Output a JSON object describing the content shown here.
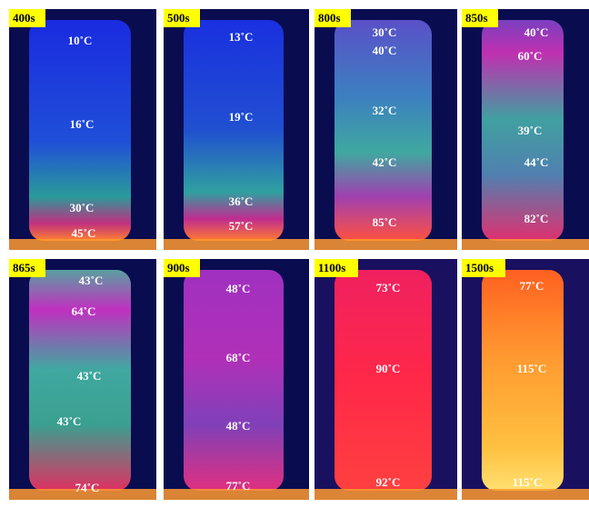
{
  "panels": [
    {
      "time": "400s",
      "labels": [
        "10˚C",
        "16˚C",
        "30˚C",
        "45˚C"
      ]
    },
    {
      "time": "500s",
      "labels": [
        "13˚C",
        "19˚C",
        "36˚C",
        "57˚C"
      ]
    },
    {
      "time": "800s",
      "labels": [
        "30˚C",
        "40˚C",
        "32˚C",
        "42˚C",
        "85˚C"
      ]
    },
    {
      "time": "850s",
      "labels": [
        "40˚C",
        "60˚C",
        "39˚C",
        "44˚C",
        "82˚C"
      ]
    },
    {
      "time": "865s",
      "labels": [
        "43˚C",
        "64˚C",
        "43˚C",
        "43˚C",
        "74˚C"
      ]
    },
    {
      "time": "900s",
      "labels": [
        "48˚C",
        "68˚C",
        "48˚C",
        "77˚C"
      ]
    },
    {
      "time": "1100s",
      "labels": [
        "73˚C",
        "90˚C",
        "92˚C"
      ]
    },
    {
      "time": "1500s",
      "labels": [
        "77˚C",
        "115˚C",
        "115˚C"
      ]
    }
  ]
}
